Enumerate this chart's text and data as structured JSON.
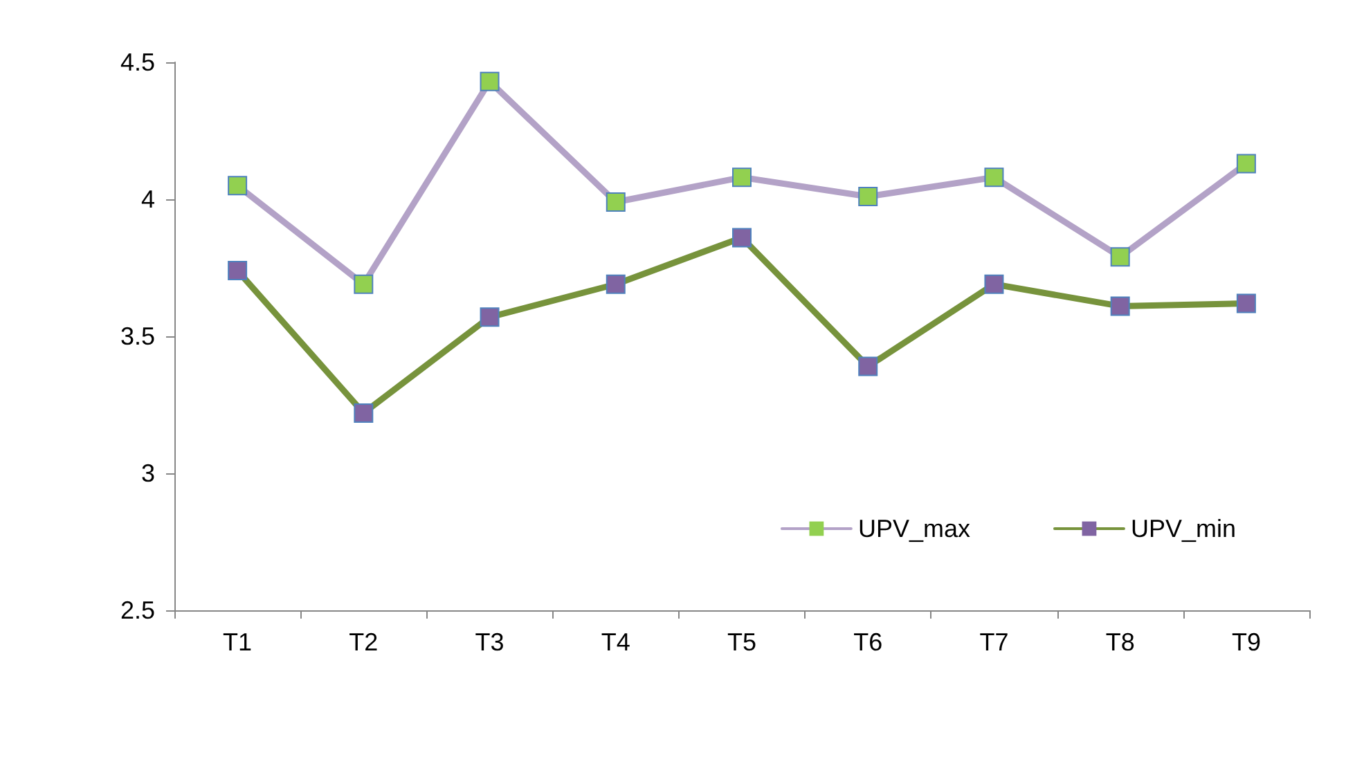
{
  "chart_data": {
    "type": "line",
    "categories": [
      "T1",
      "T2",
      "T3",
      "T4",
      "T5",
      "T6",
      "T7",
      "T8",
      "T9"
    ],
    "series": [
      {
        "name": "UPV_max",
        "color": "#b3a2c7",
        "colors": [
          "#92d050",
          "#92d050",
          "#92d050",
          "#92d050",
          "#92d050",
          "#92d050",
          "#92d050",
          "#92d050",
          "#92d050"
        ],
        "values": [
          4.05,
          3.69,
          4.43,
          3.99,
          4.08,
          4.01,
          4.08,
          3.79,
          4.13
        ]
      },
      {
        "name": "UPV_min",
        "color": "#77933c",
        "colors": [
          "#8064a2",
          "#8064a2",
          "#8064a2",
          "#8064a2",
          "#8064a2",
          "#8064a2",
          "#8064a2",
          "#8064a2",
          "#8064a2"
        ],
        "values": [
          3.74,
          3.22,
          3.57,
          3.69,
          3.86,
          3.39,
          3.69,
          3.61,
          3.62
        ]
      }
    ],
    "ylim": [
      2.5,
      4.5
    ],
    "yticks": [
      2.5,
      3,
      3.5,
      4,
      4.5
    ],
    "grid": false,
    "legend": "bottom right",
    "marker": "square",
    "line_style": "solid"
  }
}
